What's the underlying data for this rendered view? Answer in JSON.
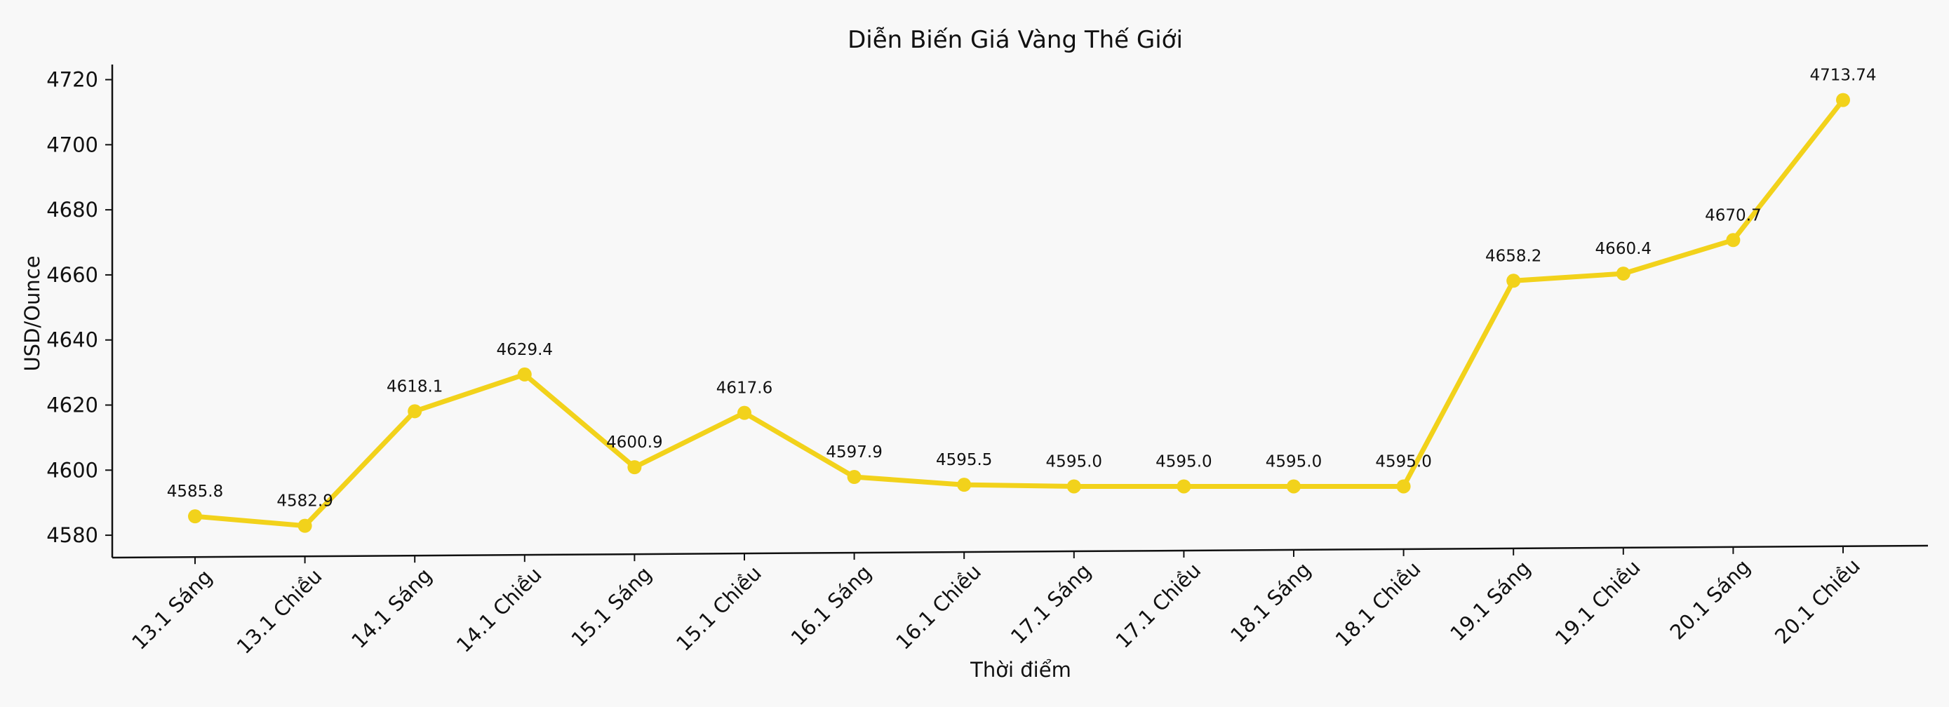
{
  "chart_data": {
    "type": "line",
    "title": "Diễn Biến Giá Vàng Thế Giới",
    "xlabel": "Thời điểm",
    "ylabel": "USD/Ounce",
    "categories": [
      "13.1 Sáng",
      "13.1 Chiều",
      "14.1 Sáng",
      "14.1 Chiều",
      "15.1 Sáng",
      "15.1 Chiều",
      "16.1 Sáng",
      "16.1 Chiều",
      "17.1 Sáng",
      "17.1 Chiều",
      "18.1 Sáng",
      "18.1 Chiều",
      "19.1 Sáng",
      "19.1 Chiều",
      "20.1 Sáng",
      "20.1 Chiều"
    ],
    "series": [
      {
        "values": [
          4585.8,
          4582.9,
          4618.1,
          4629.4,
          4600.9,
          4617.6,
          4597.9,
          4595.5,
          4595.0,
          4595.0,
          4595.0,
          4595.0,
          4658.2,
          4660.4,
          4670.7,
          4713.74
        ],
        "color": "#F2D21B"
      }
    ],
    "data_labels": [
      "4585.8",
      "4582.9",
      "4618.1",
      "4629.4",
      "4600.9",
      "4617.6",
      "4597.9",
      "4595.5",
      "4595.0",
      "4595.0",
      "4595.0",
      "4595.0",
      "4658.2",
      "4660.4",
      "4670.7",
      "4713.74"
    ],
    "yticks": [
      4580,
      4600,
      4620,
      4640,
      4660,
      4680,
      4700,
      4720
    ],
    "ylim": [
      4577,
      4724
    ],
    "grid": false,
    "legend": "none",
    "background_color": "#F8F8F8",
    "axis_color": "#111111"
  }
}
